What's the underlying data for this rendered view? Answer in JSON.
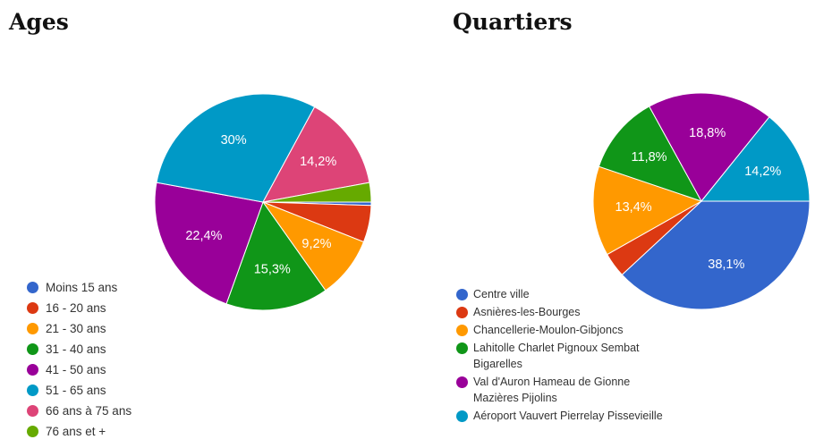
{
  "chart_data": [
    {
      "type": "pie",
      "title": "Ages",
      "legend_position": "bottom-left",
      "slices": [
        {
          "label": "Moins 15 ans",
          "value": 0.5,
          "color": "#3366cc",
          "data_label": ""
        },
        {
          "label": "16 - 20 ans",
          "value": 5.5,
          "color": "#dc3912",
          "data_label": ""
        },
        {
          "label": "21 - 30 ans",
          "value": 9.2,
          "color": "#ff9900",
          "data_label": "9,2%"
        },
        {
          "label": "31 - 40 ans",
          "value": 15.3,
          "color": "#109618",
          "data_label": "15,3%"
        },
        {
          "label": "41 - 50 ans",
          "value": 22.4,
          "color": "#990099",
          "data_label": "22,4%"
        },
        {
          "label": "51 - 65 ans",
          "value": 30,
          "color": "#0099c6",
          "data_label": "30%"
        },
        {
          "label": "66 ans à 75 ans",
          "value": 14.2,
          "color": "#dd4477",
          "data_label": "14,2%"
        },
        {
          "label": "76 ans et +",
          "value": 2.9,
          "color": "#66aa00",
          "data_label": ""
        }
      ]
    },
    {
      "type": "pie",
      "title": "Quartiers",
      "legend_position": "bottom-left",
      "slices": [
        {
          "label": "Centre ville",
          "value": 38.1,
          "color": "#3366cc",
          "data_label": "38,1%"
        },
        {
          "label": "Asnières-les-Bourges",
          "value": 3.7,
          "color": "#dc3912",
          "data_label": ""
        },
        {
          "label": "Chancellerie-Moulon-Gibjoncs",
          "value": 13.4,
          "color": "#ff9900",
          "data_label": "13,4%"
        },
        {
          "label": "Lahitolle Charlet Pignoux Sembat Bigarelles",
          "value": 11.8,
          "color": "#109618",
          "data_label": "11,8%"
        },
        {
          "label": "Val d'Auron Hameau de Gionne Mazières Pijolins",
          "value": 18.8,
          "color": "#990099",
          "data_label": "18,8%"
        },
        {
          "label": "Aéroport Vauvert Pierrelay Pissevieille",
          "value": 14.2,
          "color": "#0099c6",
          "data_label": "14,2%"
        }
      ]
    }
  ]
}
